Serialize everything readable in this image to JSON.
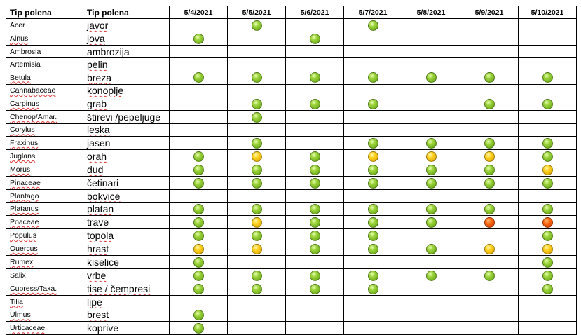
{
  "header": {
    "col1": "Tip polena",
    "col2": "Tip polena",
    "dates": [
      "5/4/2021",
      "5/5/2021",
      "5/6/2021",
      "5/7/2021",
      "5/8/2021",
      "5/9/2021",
      "5/10/2021"
    ]
  },
  "level_colors": {
    "low": "#8cc63f",
    "mid": "#ffd21f",
    "high": "#ff6a12"
  },
  "rows": [
    {
      "latin": "Acer",
      "local": "javor",
      "levels": [
        "",
        "low",
        "",
        "low",
        "",
        "",
        ""
      ]
    },
    {
      "latin": "Alnus",
      "local": "jova",
      "levels": [
        "low",
        "",
        "low",
        "",
        "",
        "",
        ""
      ]
    },
    {
      "latin": "Ambrosia",
      "local": "ambrozija",
      "levels": [
        "",
        "",
        "",
        "",
        "",
        "",
        ""
      ]
    },
    {
      "latin": "Artemisia",
      "local": "pelin",
      "levels": [
        "",
        "",
        "",
        "",
        "",
        "",
        ""
      ]
    },
    {
      "latin": "Betula",
      "local": "breza",
      "levels": [
        "low",
        "low",
        "low",
        "low",
        "low",
        "low",
        "low"
      ]
    },
    {
      "latin": "Cannabaceae",
      "local": "konoplje",
      "levels": [
        "",
        "",
        "",
        "",
        "",
        "",
        ""
      ]
    },
    {
      "latin": "Carpinus",
      "local": "grab",
      "levels": [
        "",
        "low",
        "low",
        "low",
        "",
        "low",
        "low"
      ]
    },
    {
      "latin": "Chenop/Amar.",
      "local": "štirevi /pepeljuge",
      "levels": [
        "",
        "low",
        "",
        "",
        "",
        "",
        ""
      ]
    },
    {
      "latin": "Corylus",
      "local": "leska",
      "levels": [
        "",
        "",
        "",
        "",
        "",
        "",
        ""
      ]
    },
    {
      "latin": "Fraxinus",
      "local": "jasen",
      "levels": [
        "",
        "low",
        "",
        "low",
        "low",
        "low",
        "low"
      ]
    },
    {
      "latin": "Juglans",
      "local": "orah",
      "levels": [
        "low",
        "mid",
        "low",
        "mid",
        "mid",
        "mid",
        "low"
      ]
    },
    {
      "latin": "Morus",
      "local": "dud",
      "levels": [
        "low",
        "low",
        "low",
        "low",
        "low",
        "low",
        "mid"
      ]
    },
    {
      "latin": "Pinaceae",
      "local": "četinari",
      "levels": [
        "low",
        "low",
        "low",
        "low",
        "low",
        "low",
        "low"
      ]
    },
    {
      "latin": "Plantago",
      "local": "bokvice",
      "levels": [
        "",
        "",
        "",
        "",
        "",
        "",
        ""
      ]
    },
    {
      "latin": "Platanus",
      "local": "platan",
      "levels": [
        "low",
        "low",
        "low",
        "low",
        "low",
        "low",
        "low"
      ]
    },
    {
      "latin": "Poaceae",
      "local": "trave",
      "levels": [
        "low",
        "mid",
        "low",
        "low",
        "low",
        "high",
        "high"
      ]
    },
    {
      "latin": "Populus",
      "local": "topola",
      "levels": [
        "low",
        "low",
        "low",
        "low",
        "",
        "",
        "low"
      ]
    },
    {
      "latin": "Quercus",
      "local": "hrast",
      "levels": [
        "mid",
        "mid",
        "low",
        "low",
        "low",
        "mid",
        "mid"
      ]
    },
    {
      "latin": "Rumex",
      "local": "kiselice",
      "levels": [
        "low",
        "",
        "",
        "",
        "",
        "",
        "low"
      ]
    },
    {
      "latin": "Salix",
      "local": "vrbe",
      "levels": [
        "low",
        "low",
        "low",
        "low",
        "low",
        "low",
        "low"
      ]
    },
    {
      "latin": "Cupress/Taxa.",
      "local": "tise / čempresi",
      "levels": [
        "low",
        "low",
        "low",
        "low",
        "",
        "",
        "low"
      ]
    },
    {
      "latin": "Tilia",
      "local": "lipe",
      "levels": [
        "",
        "",
        "",
        "",
        "",
        "",
        ""
      ]
    },
    {
      "latin": "Ulmus",
      "local": "brest",
      "levels": [
        "low",
        "",
        "",
        "",
        "",
        "",
        ""
      ]
    },
    {
      "latin": "Urticaceae",
      "local": "koprive",
      "levels": [
        "low",
        "",
        "",
        "",
        "",
        "",
        ""
      ]
    }
  ]
}
